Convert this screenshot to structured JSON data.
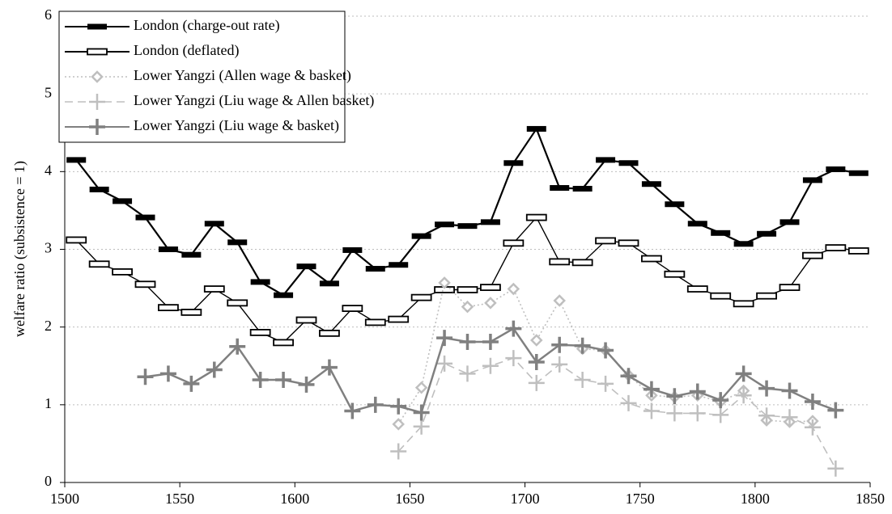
{
  "chart_data": {
    "type": "line",
    "y_label": "welfare ratio (subsistence = 1)",
    "xlim": [
      1500,
      1850
    ],
    "xticks": [
      1500,
      1550,
      1600,
      1650,
      1700,
      1750,
      1800,
      1850
    ],
    "ylim": [
      0,
      6
    ],
    "yticks": [
      0,
      1,
      2,
      3,
      4,
      5,
      6
    ],
    "grid": true,
    "legend": "top-left",
    "x": [
      1505,
      1515,
      1525,
      1535,
      1545,
      1555,
      1565,
      1575,
      1585,
      1595,
      1605,
      1615,
      1625,
      1635,
      1645,
      1655,
      1665,
      1675,
      1685,
      1695,
      1705,
      1715,
      1725,
      1735,
      1745,
      1755,
      1765,
      1775,
      1785,
      1795,
      1805,
      1815,
      1825,
      1835,
      1845
    ],
    "series": [
      {
        "name": "London (charge-out rate)",
        "color": "#000000",
        "marker": "bar-filled",
        "dash": "solid",
        "values": [
          4.15,
          3.77,
          3.62,
          3.41,
          3.0,
          2.93,
          3.33,
          3.09,
          2.58,
          2.41,
          2.78,
          2.56,
          2.99,
          2.75,
          2.8,
          3.17,
          3.32,
          3.3,
          3.35,
          4.11,
          4.55,
          3.79,
          3.78,
          4.15,
          4.11,
          3.84,
          3.58,
          3.33,
          3.21,
          3.07,
          3.2,
          3.35,
          3.89,
          4.03,
          3.98
        ]
      },
      {
        "name": "London (deflated)",
        "color": "#000000",
        "marker": "bar-open",
        "dash": "solid",
        "values": [
          3.12,
          2.81,
          2.71,
          2.55,
          2.25,
          2.19,
          2.49,
          2.31,
          1.93,
          1.8,
          2.09,
          1.92,
          2.24,
          2.06,
          2.1,
          2.38,
          2.48,
          2.48,
          2.51,
          3.08,
          3.41,
          2.84,
          2.83,
          3.11,
          3.08,
          2.88,
          2.68,
          2.49,
          2.4,
          2.3,
          2.4,
          2.51,
          2.92,
          3.02,
          2.98
        ]
      },
      {
        "name": "Lower Yangzi (Allen wage & basket)",
        "color": "#bfbfbf",
        "marker": "diamond",
        "dash": "dotted",
        "values": [
          null,
          null,
          null,
          null,
          null,
          null,
          null,
          null,
          null,
          null,
          null,
          null,
          null,
          null,
          0.75,
          1.22,
          2.57,
          2.26,
          2.31,
          2.49,
          1.83,
          2.34,
          1.72,
          1.7,
          1.38,
          1.12,
          1.1,
          1.12,
          1.04,
          1.18,
          0.8,
          0.78,
          0.79,
          null,
          null
        ]
      },
      {
        "name": "Lower Yangzi (Liu wage & Allen basket)",
        "color": "#bfbfbf",
        "marker": "plus",
        "dash": "dashed",
        "values": [
          null,
          null,
          null,
          null,
          null,
          null,
          null,
          null,
          null,
          null,
          null,
          null,
          null,
          null,
          0.4,
          0.72,
          1.53,
          1.4,
          1.5,
          1.6,
          1.28,
          1.52,
          1.32,
          1.27,
          1.02,
          0.92,
          0.89,
          0.89,
          0.87,
          1.12,
          0.86,
          0.84,
          0.71,
          0.18,
          null
        ]
      },
      {
        "name": "Lower Yangzi (Liu wage & basket)",
        "color": "#808080",
        "marker": "plus",
        "dash": "solid",
        "values": [
          null,
          null,
          null,
          1.36,
          1.4,
          1.27,
          1.45,
          1.75,
          1.32,
          1.32,
          1.26,
          1.48,
          0.92,
          1.0,
          0.98,
          0.9,
          1.86,
          1.81,
          1.81,
          1.98,
          1.55,
          1.77,
          1.76,
          1.7,
          1.37,
          1.2,
          1.11,
          1.17,
          1.06,
          1.4,
          1.21,
          1.18,
          1.04,
          0.93,
          null
        ]
      }
    ]
  }
}
